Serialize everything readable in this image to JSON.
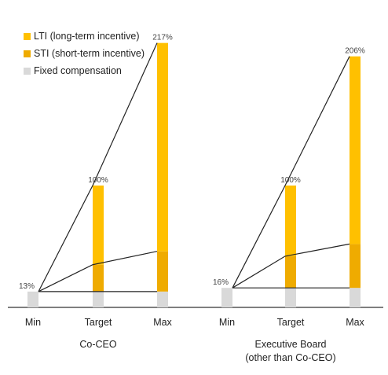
{
  "chart_data": {
    "type": "bar",
    "legend_position": "top-left",
    "legend": [
      {
        "key": "lti",
        "label": "LTI (long-term incentive)",
        "color": "#FFC000"
      },
      {
        "key": "sti",
        "label": "STI (short-term incentive)",
        "color": "#EFAB00"
      },
      {
        "key": "fixed",
        "label": "Fixed compensation",
        "color": "#D9D9D9"
      }
    ],
    "groups": [
      {
        "name": "Co-CEO",
        "categories": [
          "Min",
          "Target",
          "Max"
        ],
        "fixed": [
          13,
          13,
          13
        ],
        "sti": [
          0,
          22,
          33
        ],
        "lti": [
          0,
          65,
          171
        ],
        "total_labels": [
          "13%",
          "100%",
          "217%"
        ]
      },
      {
        "name": "Executive Board\n(other than Co-CEO)",
        "categories": [
          "Min",
          "Target",
          "Max"
        ],
        "fixed": [
          16,
          16,
          16
        ],
        "sti": [
          0,
          26,
          36
        ],
        "lti": [
          0,
          58,
          154
        ],
        "total_labels": [
          "16%",
          "100%",
          "206%"
        ]
      }
    ],
    "ylim": [
      0,
      220
    ]
  }
}
